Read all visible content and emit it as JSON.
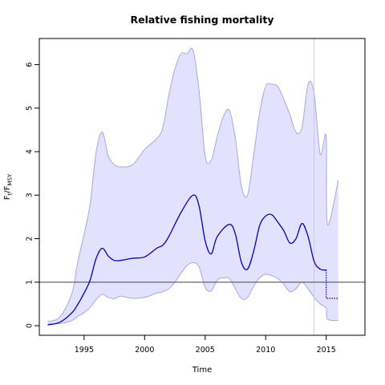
{
  "chart_data": {
    "type": "line",
    "title": "Relative fishing mortality",
    "xlabel": "Time",
    "ylabel": {
      "base": "F",
      "sub1": "t",
      "mid": "/F",
      "sub2": "MSY"
    },
    "xlim": [
      1991.3,
      2018.2
    ],
    "ylim": [
      -0.22,
      6.6
    ],
    "x_ticks": [
      1995,
      2000,
      2005,
      2010,
      2015
    ],
    "x_tick_labels": [
      "1995",
      "2000",
      "2005",
      "2010",
      "2015"
    ],
    "y_ticks": [
      0,
      1,
      2,
      3,
      4,
      5,
      6
    ],
    "y_tick_labels": [
      "0",
      "1",
      "2",
      "3",
      "4",
      "5",
      "6"
    ],
    "reference_line_y": 1.0,
    "vertical_line_x": 2014.0,
    "colors": {
      "line": "#0000cc",
      "band_fill": "#e2e2ff",
      "band_stroke": "#a6a6ee",
      "reference": "#555555",
      "vertical": "#cccccc"
    },
    "estimate": {
      "x": [
        1992,
        1993,
        1994,
        1994.5,
        1995,
        1995.5,
        1996,
        1996.5,
        1997,
        1997.5,
        1998,
        1999,
        2000,
        2001,
        2001.5,
        2002,
        2003,
        2004,
        2004.5,
        2005,
        2005.5,
        2006,
        2007,
        2007.5,
        2008,
        2008.5,
        2009,
        2009.5,
        2010,
        2010.5,
        2011,
        2011.5,
        2012,
        2012.5,
        2013,
        2013.5,
        2014,
        2014.5,
        2015
      ],
      "y": [
        0.02,
        0.08,
        0.3,
        0.5,
        0.75,
        1.05,
        1.55,
        1.78,
        1.6,
        1.5,
        1.5,
        1.55,
        1.58,
        1.78,
        1.85,
        2.05,
        2.6,
        3.0,
        2.75,
        1.95,
        1.65,
        2.05,
        2.33,
        2.1,
        1.45,
        1.3,
        1.7,
        2.3,
        2.52,
        2.55,
        2.38,
        2.18,
        1.9,
        2.0,
        2.35,
        2.05,
        1.48,
        1.3,
        1.28
      ]
    },
    "projection": {
      "x": [
        2015,
        2015,
        2016
      ],
      "y": [
        1.28,
        0.63,
        0.63
      ]
    },
    "band_upper": {
      "x": [
        1992,
        1993,
        1994,
        1994.5,
        1995,
        1995.5,
        1996,
        1996.5,
        1997,
        1997.5,
        1998,
        1999,
        2000,
        2001,
        2001.5,
        2002,
        2002.5,
        2003,
        2003.5,
        2004,
        2004.5,
        2005,
        2005.5,
        2006,
        2006.5,
        2007,
        2007.5,
        2008,
        2008.5,
        2009,
        2009.5,
        2010,
        2010.5,
        2011,
        2011.5,
        2012,
        2012.5,
        2013,
        2013.5,
        2014,
        2014.5,
        2015,
        2015.1,
        2016
      ],
      "y": [
        0.1,
        0.2,
        0.75,
        1.5,
        2.1,
        2.8,
        4.0,
        4.45,
        3.9,
        3.7,
        3.65,
        3.7,
        4.05,
        4.3,
        4.55,
        5.3,
        5.9,
        6.25,
        6.25,
        6.33,
        5.4,
        3.9,
        3.8,
        4.35,
        4.8,
        4.95,
        4.3,
        3.2,
        3.0,
        3.9,
        4.9,
        5.5,
        5.55,
        5.5,
        5.2,
        4.85,
        4.45,
        4.55,
        5.55,
        5.35,
        3.95,
        4.35,
        2.33,
        3.35
      ]
    },
    "band_lower": {
      "x": [
        2016,
        2015.1,
        2015,
        2014.5,
        2014,
        2013.5,
        2013,
        2012.5,
        2012,
        2011.5,
        2011,
        2010.5,
        2010,
        2009.5,
        2009,
        2008.5,
        2008,
        2007.5,
        2007,
        2006.5,
        2006,
        2005.5,
        2005,
        2004.5,
        2004,
        2003.5,
        2003,
        2002.5,
        2002,
        2001.5,
        2001,
        2000,
        1999,
        1998,
        1997.5,
        1997,
        1996.5,
        1996,
        1995.5,
        1995,
        1994.5,
        1994,
        1993,
        1992
      ],
      "y": [
        0.12,
        0.15,
        0.4,
        0.5,
        0.65,
        0.85,
        1.0,
        0.85,
        0.78,
        0.95,
        1.08,
        1.15,
        1.18,
        1.1,
        0.9,
        0.65,
        0.62,
        0.85,
        1.08,
        1.1,
        1.05,
        0.8,
        0.88,
        1.35,
        1.45,
        1.38,
        1.2,
        1.0,
        0.85,
        0.78,
        0.75,
        0.65,
        0.63,
        0.68,
        0.62,
        0.65,
        0.72,
        0.6,
        0.42,
        0.3,
        0.22,
        0.12,
        0.05,
        0.04
      ]
    }
  }
}
